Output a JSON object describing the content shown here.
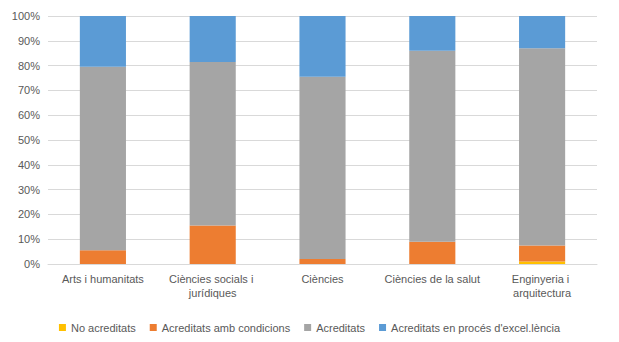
{
  "chart_data": {
    "type": "bar",
    "stacked": true,
    "grid": true,
    "legend": "bottom",
    "categories": [
      "Arts i humanitats",
      "Ciències socials i jurídiques",
      "Ciències",
      "Ciències de la salut",
      "Enginyeria i arquitectura"
    ],
    "series": [
      {
        "name": "No acreditats",
        "color": "#ffc000",
        "values": [
          0,
          0,
          0,
          0,
          1
        ]
      },
      {
        "name": "Acreditats amb condicions",
        "color": "#ed7d31",
        "values": [
          5.5,
          15.5,
          2,
          9,
          6.5
        ]
      },
      {
        "name": "Acreditats",
        "color": "#a5a5a5",
        "values": [
          74,
          66,
          73.5,
          77,
          79.5
        ]
      },
      {
        "name": "Acreditats en procés d'excel.lència",
        "color": "#5b9bd5",
        "values": [
          20.5,
          18.5,
          24.5,
          14,
          13
        ]
      }
    ],
    "ylim": [
      0,
      100
    ],
    "yticks": [
      {
        "value": 0,
        "label": "0%"
      },
      {
        "value": 10,
        "label": "10%"
      },
      {
        "value": 20,
        "label": "20%"
      },
      {
        "value": 30,
        "label": "30%"
      },
      {
        "value": 40,
        "label": "40%"
      },
      {
        "value": 50,
        "label": "50%"
      },
      {
        "value": 60,
        "label": "60%"
      },
      {
        "value": 70,
        "label": "70%"
      },
      {
        "value": 80,
        "label": "80%"
      },
      {
        "value": 90,
        "label": "90%"
      },
      {
        "value": 100,
        "label": "100%"
      }
    ]
  }
}
